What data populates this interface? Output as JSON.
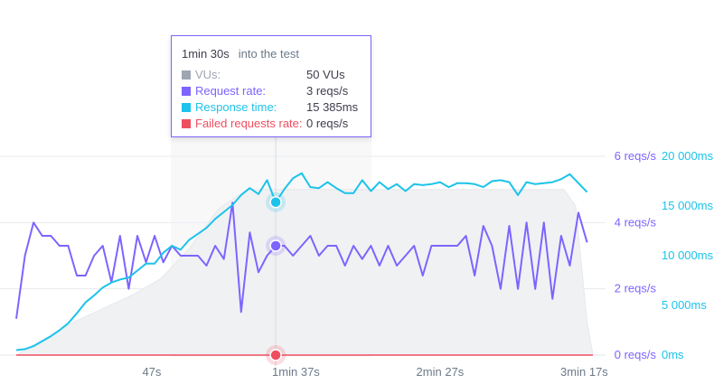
{
  "tooltip": {
    "time": "1min 30s",
    "suffix": "into the test",
    "rows": [
      {
        "label": "VUs:",
        "value": "50 VUs",
        "color": "#9fa6b3"
      },
      {
        "label": "Request rate:",
        "value": "3 reqs/s",
        "color": "#7d64ff"
      },
      {
        "label": "Response time:",
        "value": "15 385ms",
        "color": "#1cc3ea"
      },
      {
        "label": "Failed requests rate:",
        "value": "0 reqs/s",
        "color": "#ee4f60"
      }
    ]
  },
  "chart_data": {
    "type": "line",
    "x_unit": "seconds into the test",
    "x_ticks": [
      {
        "value": 47,
        "label": "47s"
      },
      {
        "value": 97,
        "label": "1min 37s"
      },
      {
        "value": 147,
        "label": "2min 27s"
      },
      {
        "value": 197,
        "label": "3min 17s"
      }
    ],
    "xlim": [
      0,
      200
    ],
    "left_axis": {
      "unit": "reqs/s",
      "ylim": [
        0,
        6
      ],
      "ticks": [
        {
          "value": 0,
          "label": "0 reqs/s"
        },
        {
          "value": 2,
          "label": "2 reqs/s"
        },
        {
          "value": 4,
          "label": "4 reqs/s"
        },
        {
          "value": 6,
          "label": "6 reqs/s"
        }
      ]
    },
    "right_axis": {
      "unit": "ms",
      "ylim": [
        0,
        20000
      ],
      "ticks": [
        {
          "value": 0,
          "label": "0ms"
        },
        {
          "value": 5000,
          "label": "5 000ms"
        },
        {
          "value": 10000,
          "label": "10 000ms"
        },
        {
          "value": 15000,
          "label": "15 000ms"
        },
        {
          "value": 20000,
          "label": "20 000ms"
        }
      ]
    },
    "hover_x": 90,
    "series": [
      {
        "name": "VUs",
        "unit": "VUs",
        "axis": "hidden",
        "color": "#9fa6b3",
        "style": "area",
        "x": [
          0,
          10,
          20,
          30,
          40,
          50,
          60,
          70,
          80,
          90,
          100,
          190,
          194,
          198,
          200
        ],
        "y": [
          0,
          5,
          10,
          14,
          18,
          23,
          32,
          44,
          50,
          50,
          50,
          50,
          45,
          10,
          0
        ]
      },
      {
        "name": "Request rate",
        "unit": "reqs/s",
        "axis": "left",
        "color": "#7d64ff",
        "style": "line",
        "x": [
          0,
          3,
          6,
          9,
          12,
          15,
          18,
          21,
          24,
          27,
          30,
          33,
          36,
          39,
          42,
          45,
          48,
          51,
          54,
          57,
          60,
          63,
          66,
          69,
          72,
          75,
          78,
          81,
          84,
          87,
          90,
          93,
          96,
          99,
          102,
          105,
          108,
          111,
          114,
          117,
          120,
          123,
          126,
          129,
          132,
          135,
          138,
          141,
          144,
          147,
          150,
          153,
          156,
          159,
          162,
          165,
          168,
          171,
          174,
          177,
          180,
          183,
          186,
          189,
          192,
          195,
          198
        ],
        "y": [
          1.1,
          3,
          4,
          3.6,
          3.6,
          3.3,
          3.3,
          2.4,
          2.4,
          3,
          3.3,
          2.2,
          3.6,
          2,
          3.6,
          2.8,
          3.6,
          2.8,
          3.3,
          3,
          3,
          3,
          2.7,
          3.3,
          2.9,
          4.6,
          1.3,
          3.7,
          2.5,
          3,
          3.3,
          3.3,
          3,
          3.3,
          3.6,
          3,
          3.3,
          3.3,
          2.7,
          3.3,
          2.9,
          3.3,
          2.7,
          3.3,
          2.7,
          3,
          3.3,
          2.4,
          3.3,
          3.3,
          3.3,
          3.3,
          3.6,
          2.4,
          3.9,
          3.3,
          2,
          3.9,
          2,
          4,
          2,
          4,
          1.7,
          3.6,
          2.7,
          4.3,
          3.4
        ]
      },
      {
        "name": "Response time",
        "unit": "ms",
        "axis": "right",
        "color": "#1cc3ea",
        "style": "line",
        "x": [
          0,
          3,
          6,
          9,
          12,
          15,
          18,
          21,
          24,
          27,
          30,
          33,
          36,
          39,
          42,
          45,
          48,
          51,
          54,
          57,
          60,
          63,
          66,
          69,
          72,
          75,
          78,
          81,
          84,
          87,
          90,
          93,
          96,
          99,
          102,
          105,
          108,
          111,
          114,
          117,
          120,
          123,
          126,
          129,
          132,
          135,
          138,
          141,
          144,
          147,
          150,
          153,
          156,
          159,
          162,
          165,
          168,
          171,
          174,
          177,
          180,
          183,
          186,
          189,
          192,
          195,
          198
        ],
        "y": [
          500,
          600,
          900,
          1400,
          1900,
          2500,
          3200,
          4200,
          5300,
          6000,
          6800,
          7300,
          7600,
          7800,
          8500,
          9200,
          9200,
          10300,
          11000,
          10600,
          11600,
          12200,
          12800,
          13700,
          14400,
          15100,
          16100,
          16800,
          16200,
          17600,
          15385,
          16700,
          17800,
          18300,
          16900,
          16800,
          17400,
          16800,
          16300,
          16300,
          17600,
          16500,
          17400,
          16700,
          17200,
          16500,
          17200,
          17100,
          17200,
          17400,
          16900,
          17300,
          17300,
          17200,
          16900,
          17500,
          17600,
          17400,
          16100,
          17400,
          17200,
          17300,
          17400,
          17700,
          18200,
          17300,
          16400
        ]
      },
      {
        "name": "Failed requests rate",
        "unit": "reqs/s",
        "axis": "left",
        "color": "#ee4f60",
        "style": "line",
        "x": [
          0,
          200
        ],
        "y": [
          0,
          0
        ]
      }
    ]
  }
}
